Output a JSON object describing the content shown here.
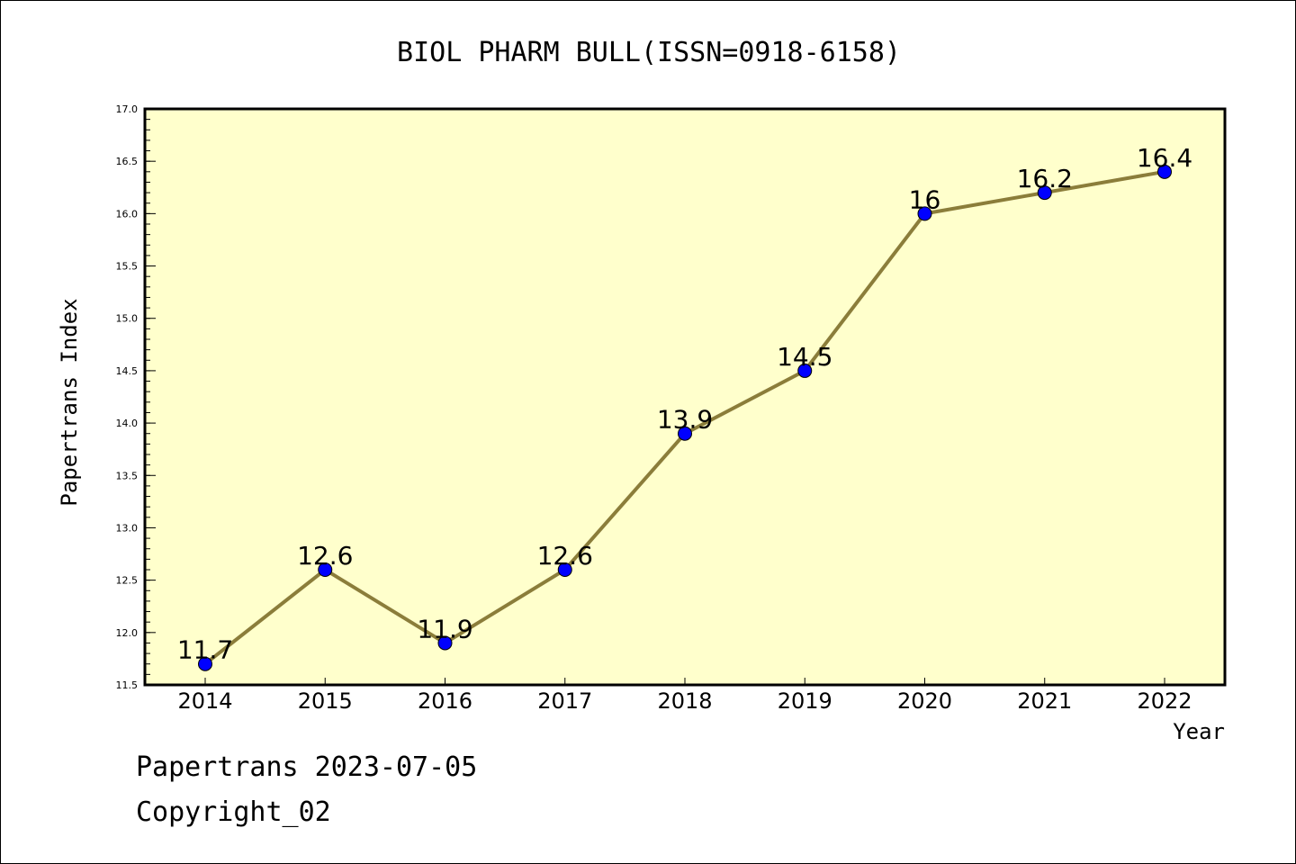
{
  "chart_data": {
    "type": "line",
    "title": "BIOL PHARM BULL(ISSN=0918-6158)",
    "xlabel": "Year",
    "ylabel": "Papertrans Index",
    "categories": [
      "2014",
      "2015",
      "2016",
      "2017",
      "2018",
      "2019",
      "2020",
      "2021",
      "2022"
    ],
    "series": [
      {
        "values": [
          11.7,
          12.6,
          11.9,
          12.6,
          13.9,
          14.5,
          16,
          16.2,
          16.4
        ],
        "data_labels": [
          "11.7",
          "12.6",
          "11.9",
          "12.6",
          "13.9",
          "14.5",
          "16",
          "16.2",
          "16.4"
        ]
      }
    ],
    "ylim": [
      11.5,
      17.0
    ],
    "yticks": [
      "11.5",
      "12.0",
      "12.5",
      "13.0",
      "13.5",
      "14.0",
      "14.5",
      "15.0",
      "15.5",
      "16.0",
      "16.5",
      "17.0"
    ],
    "grid": false,
    "legend": "none",
    "colors": {
      "plot_background": "#ffffcc",
      "line": "#8b7d3a",
      "marker": "#0000ff",
      "axis": "#000000"
    }
  },
  "footer": {
    "date_text": "Papertrans 2023-07-05",
    "copyright_text": "Copyright_02"
  }
}
